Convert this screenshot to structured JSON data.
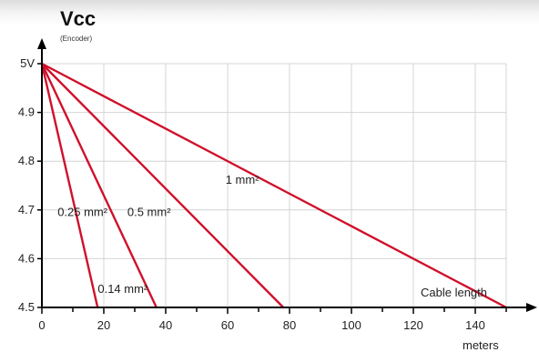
{
  "chart_data": {
    "type": "line",
    "title": "Vcc",
    "subtitle": "(Encoder)",
    "xlabel": "Cable length",
    "xunit": "meters",
    "xlim": [
      0,
      150
    ],
    "ylim": [
      4.5,
      5.0
    ],
    "xticks": [
      0,
      20,
      40,
      60,
      80,
      100,
      120,
      140
    ],
    "xtick_labels": [
      "0",
      "20",
      "40",
      "60",
      "80",
      "100",
      "120",
      "140"
    ],
    "yticks": [
      4.5,
      4.6,
      4.7,
      4.8,
      4.9,
      5.0
    ],
    "ytick_labels": [
      "4.5",
      "4.6",
      "4.7",
      "4.8",
      "4.9",
      "5V"
    ],
    "grid": true,
    "line_color": "#d0102a",
    "series": [
      {
        "name": "1 mm²",
        "x": [
          0,
          150
        ],
        "y": [
          5.0,
          4.5
        ]
      },
      {
        "name": "0.5 mm²",
        "x": [
          0,
          78
        ],
        "y": [
          5.0,
          4.5
        ]
      },
      {
        "name": "0.25 mm²",
        "x": [
          0,
          37
        ],
        "y": [
          5.0,
          4.5
        ]
      },
      {
        "name": "0.14 mm²",
        "x": [
          0,
          18
        ],
        "y": [
          5.0,
          4.5
        ]
      }
    ]
  }
}
